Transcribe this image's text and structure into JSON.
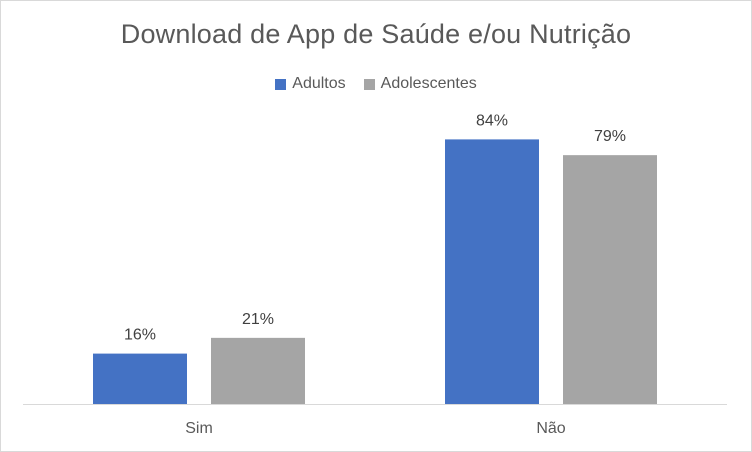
{
  "chart_data": {
    "type": "bar",
    "title": "Download de App de Saúde e/ou Nutrição",
    "categories": [
      "Sim",
      "Não"
    ],
    "series": [
      {
        "name": "Adultos",
        "values": [
          16,
          84
        ],
        "labels": [
          "16%",
          "84%"
        ],
        "color": "#4472c4"
      },
      {
        "name": "Adolescentes",
        "values": [
          21,
          79
        ],
        "labels": [
          "21%",
          "79%"
        ],
        "color": "#a5a5a5"
      }
    ],
    "xlabel": "",
    "ylabel": "",
    "ylim": [
      0,
      100
    ],
    "grid": false,
    "legend": "top"
  }
}
